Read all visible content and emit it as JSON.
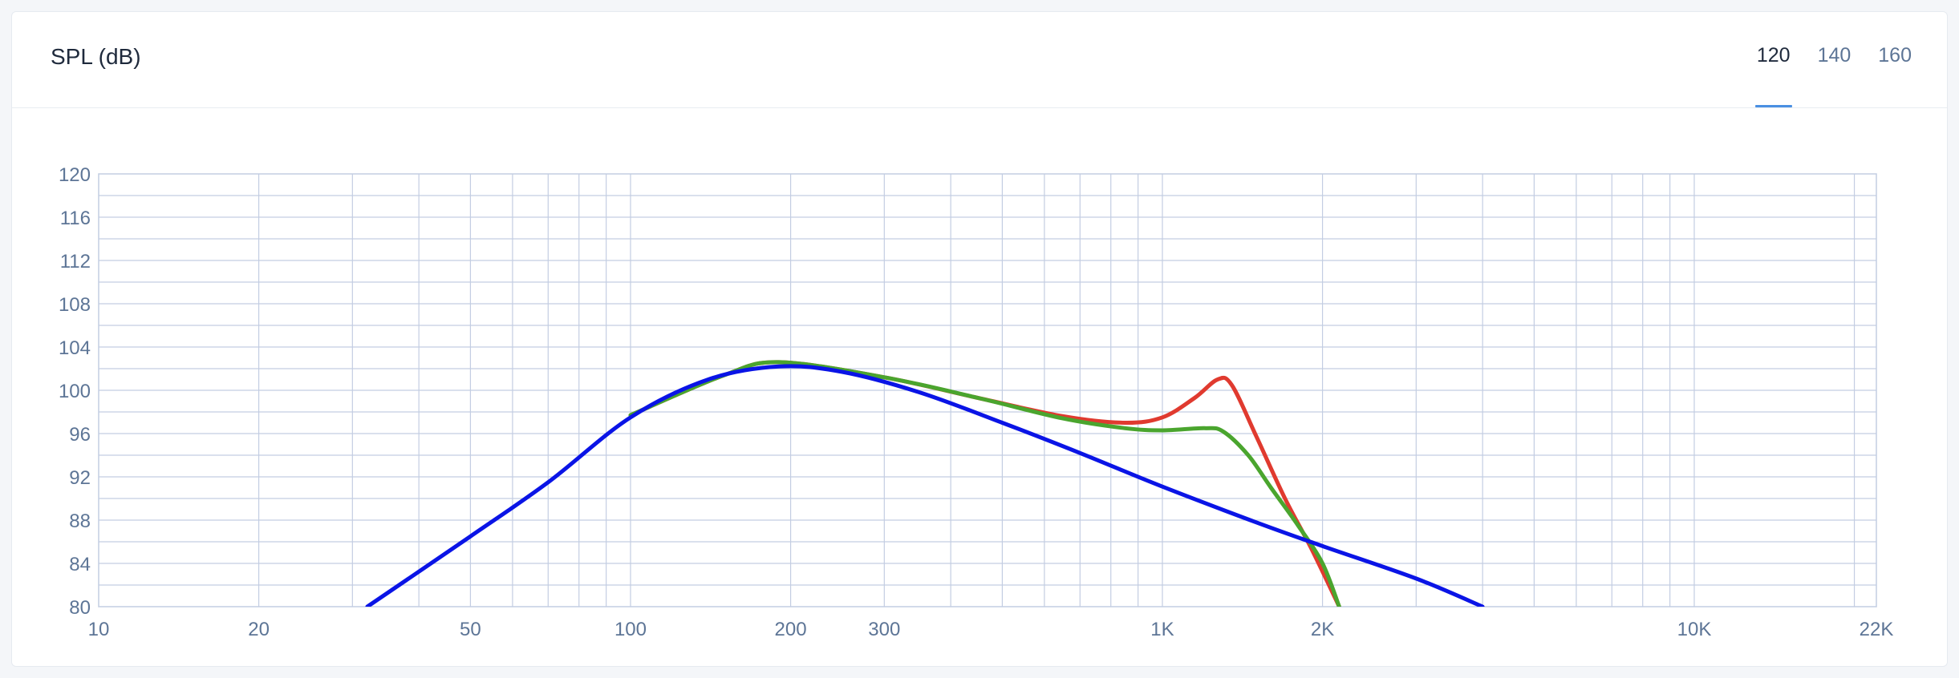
{
  "card": {
    "title": "SPL (dB)",
    "tabs": [
      {
        "label": "120",
        "active": true
      },
      {
        "label": "140",
        "active": false
      },
      {
        "label": "160",
        "active": false
      }
    ]
  },
  "colors": {
    "grid": "#c3cde2",
    "tick_text": "#5d7596",
    "accent": "#4a90e2"
  },
  "chart_data": {
    "type": "line",
    "title": "SPL (dB)",
    "xscale": "log",
    "xlim": [
      10,
      22000
    ],
    "ylim": [
      80,
      120
    ],
    "x_ticks": [
      {
        "value": 10,
        "label": "10"
      },
      {
        "value": 20,
        "label": "20"
      },
      {
        "value": 50,
        "label": "50"
      },
      {
        "value": 100,
        "label": "100"
      },
      {
        "value": 200,
        "label": "200"
      },
      {
        "value": 300,
        "label": "300"
      },
      {
        "value": 1000,
        "label": "1K"
      },
      {
        "value": 2000,
        "label": "2K"
      },
      {
        "value": 10000,
        "label": "10K"
      },
      {
        "value": 22000,
        "label": "22K"
      }
    ],
    "y_ticks": [
      80,
      84,
      88,
      92,
      96,
      100,
      104,
      108,
      112,
      116,
      120
    ],
    "grid": true,
    "series": [
      {
        "color": "#e03a2f",
        "points": [
          [
            100,
            97.7
          ],
          [
            150,
            101.4
          ],
          [
            190,
            102.6
          ],
          [
            300,
            101.2
          ],
          [
            450,
            99.3
          ],
          [
            650,
            97.6
          ],
          [
            850,
            97.0
          ],
          [
            1000,
            97.5
          ],
          [
            1150,
            99.3
          ],
          [
            1270,
            101.0
          ],
          [
            1350,
            100.5
          ],
          [
            1500,
            95.8
          ],
          [
            1700,
            90.0
          ],
          [
            1900,
            85.5
          ],
          [
            2150,
            80.0
          ]
        ]
      },
      {
        "color": "#4aa52e",
        "points": [
          [
            100,
            97.7
          ],
          [
            150,
            101.4
          ],
          [
            190,
            102.6
          ],
          [
            300,
            101.2
          ],
          [
            450,
            99.3
          ],
          [
            650,
            97.4
          ],
          [
            850,
            96.5
          ],
          [
            1000,
            96.3
          ],
          [
            1200,
            96.5
          ],
          [
            1300,
            96.2
          ],
          [
            1450,
            94.0
          ],
          [
            1600,
            91.0
          ],
          [
            1800,
            87.5
          ],
          [
            2000,
            84.0
          ],
          [
            2150,
            80.0
          ]
        ]
      },
      {
        "color": "#0a14e6",
        "points": [
          [
            32,
            80.0
          ],
          [
            50,
            86.5
          ],
          [
            70,
            91.5
          ],
          [
            100,
            97.5
          ],
          [
            140,
            101.0
          ],
          [
            190,
            102.2
          ],
          [
            250,
            101.7
          ],
          [
            350,
            99.8
          ],
          [
            500,
            97.0
          ],
          [
            700,
            94.2
          ],
          [
            1000,
            91.1
          ],
          [
            1500,
            87.8
          ],
          [
            2000,
            85.6
          ],
          [
            3000,
            82.6
          ],
          [
            4000,
            80.0
          ]
        ]
      }
    ]
  }
}
